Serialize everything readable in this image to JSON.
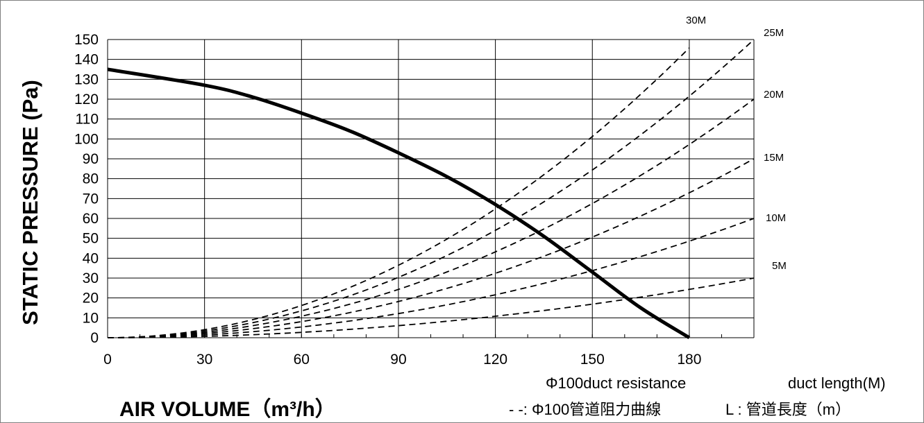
{
  "chart_data": {
    "type": "line",
    "xlabel": "AIR VOLUME（m³/h）",
    "ylabel": "STATIC PRESSURE (Pa)",
    "xlim": [
      0,
      200
    ],
    "ylim": [
      0,
      150
    ],
    "x_ticks": [
      0,
      30,
      60,
      90,
      120,
      150,
      180
    ],
    "y_ticks": [
      0,
      10,
      20,
      30,
      40,
      50,
      60,
      70,
      80,
      90,
      100,
      110,
      120,
      130,
      140,
      150
    ],
    "grid": true,
    "fan_curve": {
      "style": "solid-thick",
      "points": [
        [
          0,
          135
        ],
        [
          30,
          127
        ],
        [
          45,
          121
        ],
        [
          60,
          113
        ],
        [
          75,
          104
        ],
        [
          90,
          93
        ],
        [
          105,
          81
        ],
        [
          120,
          67
        ],
        [
          135,
          51
        ],
        [
          150,
          33
        ],
        [
          165,
          15
        ],
        [
          180,
          0
        ]
      ]
    },
    "duct_curves": [
      {
        "label": "5M",
        "k": 0.00075,
        "x_end": 200
      },
      {
        "label": "10M",
        "k": 0.0015,
        "x_end": 200
      },
      {
        "label": "15M",
        "k": 0.00225,
        "x_end": 200
      },
      {
        "label": "20M",
        "k": 0.003,
        "x_end": 200
      },
      {
        "label": "25M",
        "k": 0.00375,
        "x_end": 200
      },
      {
        "label": "30M",
        "k": 0.0045,
        "x_end": 180
      }
    ],
    "legend_lines": [
      "Φ100duct resistance",
      "duct length(M)",
      "- -: Φ100管道阻力曲線",
      "L : 管道長度（m）"
    ]
  }
}
